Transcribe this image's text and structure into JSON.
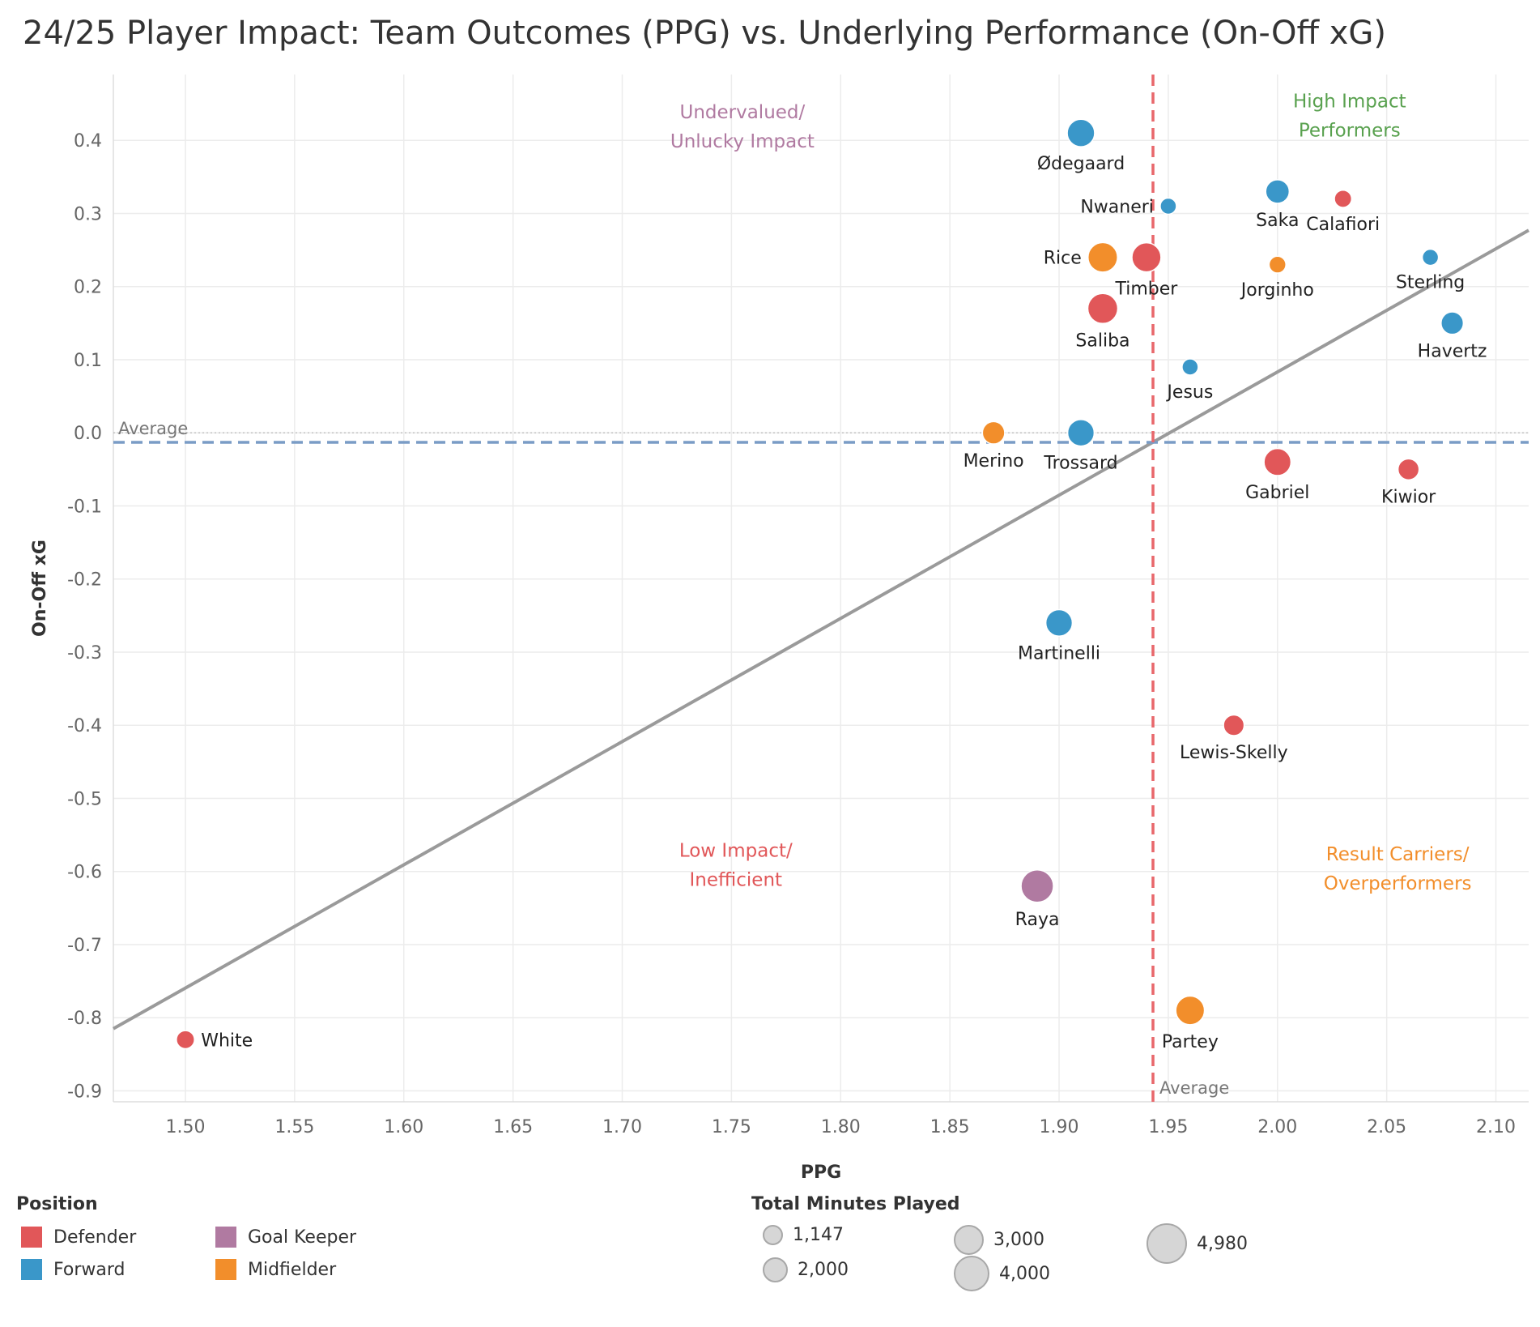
{
  "chart_data": {
    "type": "scatter",
    "title": "24/25 Player Impact: Team Outcomes (PPG) vs. Underlying Performance (On-Off xG)",
    "xlabel": "PPG",
    "ylabel": "On-Off xG",
    "xlim": [
      1.467,
      2.115
    ],
    "ylim": [
      -0.915,
      0.49
    ],
    "x_ticks": [
      "1.50",
      "1.55",
      "1.60",
      "1.65",
      "1.70",
      "1.75",
      "1.80",
      "1.85",
      "1.90",
      "1.95",
      "2.00",
      "2.05",
      "2.10"
    ],
    "y_ticks": [
      "0.4",
      "0.3",
      "0.2",
      "0.1",
      "0.0",
      "-0.1",
      "-0.2",
      "-0.3",
      "-0.4",
      "-0.5",
      "-0.6",
      "-0.7",
      "-0.8",
      "-0.9"
    ],
    "average_x": 1.943,
    "average_y": -0.013,
    "average_label": "Average",
    "trendline": {
      "x0": 1.467,
      "y0": -0.815,
      "x1": 2.115,
      "y1": 0.277
    },
    "quadrant_labels": [
      {
        "lines": [
          "Undervalued/",
          "Unlucky Impact"
        ],
        "x": 1.755,
        "y": 0.43,
        "color": "#b07aa1"
      },
      {
        "lines": [
          "High Impact",
          "Performers"
        ],
        "x": 2.033,
        "y": 0.445,
        "color": "#59a14f"
      },
      {
        "lines": [
          "Low Impact/",
          "Inefficient"
        ],
        "x": 1.752,
        "y": -0.58,
        "color": "#e15759"
      },
      {
        "lines": [
          "Result Carriers/",
          "Overperformers"
        ],
        "x": 2.055,
        "y": -0.585,
        "color": "#f28e2b"
      }
    ],
    "points": [
      {
        "name": "Ødegaard",
        "x": 1.91,
        "y": 0.41,
        "position": "Forward",
        "minutes": 3800,
        "label_pos": "below"
      },
      {
        "name": "Nwaneri",
        "x": 1.95,
        "y": 0.31,
        "position": "Forward",
        "minutes": 1147,
        "label_pos": "left"
      },
      {
        "name": "Saka",
        "x": 2.0,
        "y": 0.33,
        "position": "Forward",
        "minutes": 2900,
        "label_pos": "below"
      },
      {
        "name": "Calafiori",
        "x": 2.03,
        "y": 0.32,
        "position": "Defender",
        "minutes": 1400,
        "label_pos": "below"
      },
      {
        "name": "Rice",
        "x": 1.92,
        "y": 0.24,
        "position": "Midfielder",
        "minutes": 4300,
        "label_pos": "left"
      },
      {
        "name": "Timber",
        "x": 1.94,
        "y": 0.24,
        "position": "Defender",
        "minutes": 4200,
        "label_pos": "below"
      },
      {
        "name": "Jorginho",
        "x": 2.0,
        "y": 0.23,
        "position": "Midfielder",
        "minutes": 1300,
        "label_pos": "below"
      },
      {
        "name": "Sterling",
        "x": 2.07,
        "y": 0.24,
        "position": "Forward",
        "minutes": 1147,
        "label_pos": "below"
      },
      {
        "name": "Saliba",
        "x": 1.92,
        "y": 0.17,
        "position": "Defender",
        "minutes": 4400,
        "label_pos": "below"
      },
      {
        "name": "Havertz",
        "x": 2.08,
        "y": 0.15,
        "position": "Forward",
        "minutes": 2600,
        "label_pos": "below"
      },
      {
        "name": "Jesus",
        "x": 1.96,
        "y": 0.09,
        "position": "Forward",
        "minutes": 1147,
        "label_pos": "below"
      },
      {
        "name": "Merino",
        "x": 1.87,
        "y": 0.0,
        "position": "Midfielder",
        "minutes": 2600,
        "label_pos": "below"
      },
      {
        "name": "Trossard",
        "x": 1.91,
        "y": 0.0,
        "position": "Forward",
        "minutes": 3600,
        "label_pos": "below"
      },
      {
        "name": "Gabriel",
        "x": 2.0,
        "y": -0.04,
        "position": "Defender",
        "minutes": 3700,
        "label_pos": "below"
      },
      {
        "name": "Kiwior",
        "x": 2.06,
        "y": -0.05,
        "position": "Defender",
        "minutes": 2300,
        "label_pos": "below"
      },
      {
        "name": "Martinelli",
        "x": 1.9,
        "y": -0.26,
        "position": "Forward",
        "minutes": 3600,
        "label_pos": "below"
      },
      {
        "name": "Lewis-Skelly",
        "x": 1.98,
        "y": -0.4,
        "position": "Defender",
        "minutes": 2200,
        "label_pos": "below"
      },
      {
        "name": "Raya",
        "x": 1.89,
        "y": -0.62,
        "position": "Goal Keeper",
        "minutes": 4980,
        "label_pos": "below"
      },
      {
        "name": "Partey",
        "x": 1.96,
        "y": -0.79,
        "position": "Midfielder",
        "minutes": 4100,
        "label_pos": "below"
      },
      {
        "name": "White",
        "x": 1.5,
        "y": -0.83,
        "position": "Defender",
        "minutes": 1600,
        "label_pos": "right"
      }
    ]
  },
  "legend": {
    "position_title": "Position",
    "positions": [
      {
        "label": "Defender",
        "color": "#e15759"
      },
      {
        "label": "Goal Keeper",
        "color": "#b07aa1"
      },
      {
        "label": "Forward",
        "color": "#3a97c9"
      },
      {
        "label": "Midfielder",
        "color": "#f28e2b"
      }
    ],
    "size_title": "Total Minutes Played",
    "sizes": [
      {
        "label": "1,147",
        "minutes": 1147
      },
      {
        "label": "3,000",
        "minutes": 3000
      },
      {
        "label": "4,980",
        "minutes": 4980
      },
      {
        "label": "2,000",
        "minutes": 2000
      },
      {
        "label": "4,000",
        "minutes": 4000
      }
    ]
  }
}
